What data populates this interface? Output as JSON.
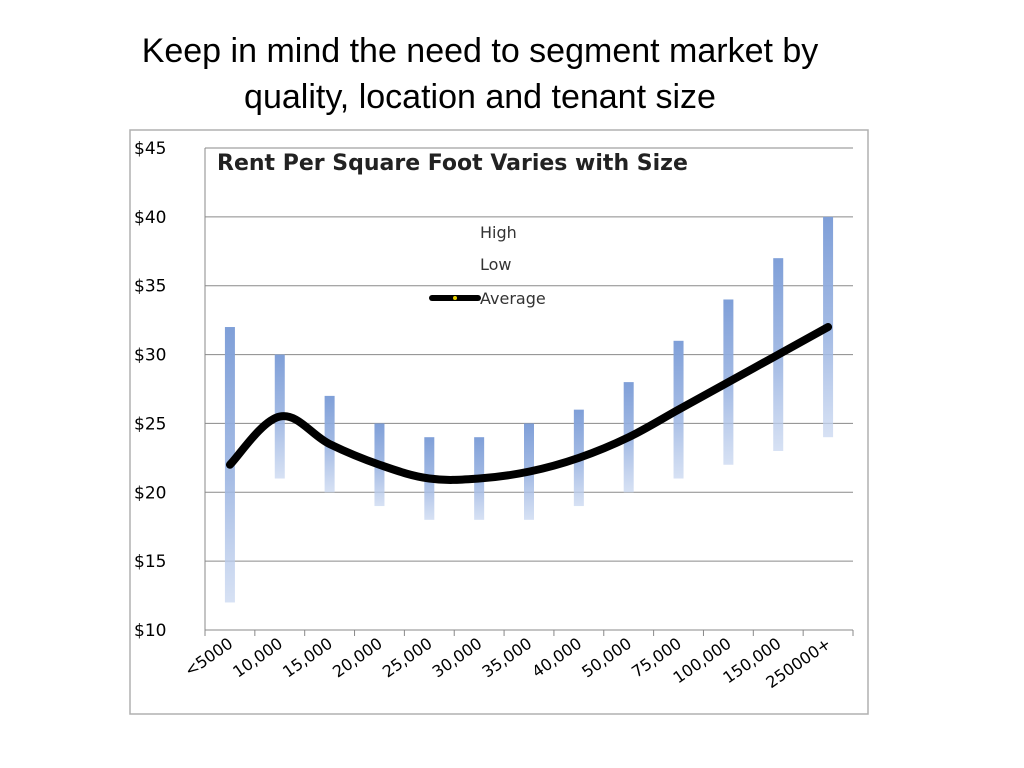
{
  "slide": {
    "title_line1": "Keep in mind the need to segment market by",
    "title_line2": "quality, location and tenant size"
  },
  "chart_data": {
    "type": "line",
    "title": "Rent Per Square Foot Varies with Size",
    "xlabel": "",
    "ylabel": "",
    "categories": [
      "<5000",
      "10,000",
      "15,000",
      "20,000",
      "25,000",
      "30,000",
      "35,000",
      "40,000",
      "50,000",
      "75,000",
      "100,000",
      "150,000",
      "250000+"
    ],
    "ylim": [
      10,
      45
    ],
    "yticks": [
      10,
      15,
      20,
      25,
      30,
      35,
      40,
      45
    ],
    "ytick_labels": [
      "$10",
      "$15",
      "$20",
      "$25",
      "$30",
      "$35",
      "$40",
      "$45"
    ],
    "grid": true,
    "legend_position": "top-center",
    "series": [
      {
        "name": "High",
        "values": [
          32,
          30,
          27,
          25,
          24,
          24,
          25,
          26,
          28,
          31,
          34,
          37,
          40
        ]
      },
      {
        "name": "Low",
        "values": [
          12,
          21,
          20,
          19,
          18,
          18,
          18,
          19,
          20,
          21,
          22,
          23,
          24
        ]
      },
      {
        "name": "Average",
        "values": [
          22,
          25.5,
          23.5,
          22,
          21,
          21,
          21.5,
          22.5,
          24,
          26,
          28,
          30,
          32
        ]
      }
    ],
    "colors": {
      "range_bar": "#7f9fd8",
      "average_line": "#000000",
      "grid": "#8a8a8a"
    }
  }
}
